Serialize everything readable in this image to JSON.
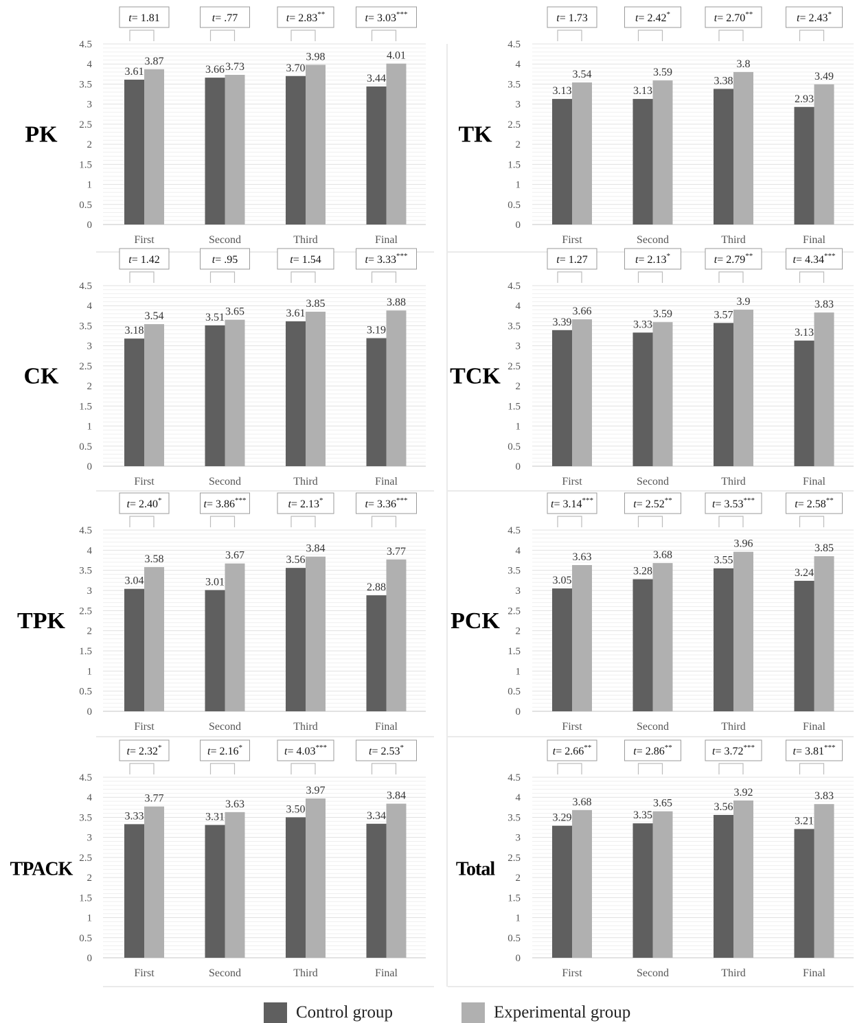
{
  "colors": {
    "control": "#5f5f5f",
    "experimental": "#b0b0b0",
    "axis_text": "#555555",
    "grid": "#e1e1e1",
    "divider": "#d5d5d5"
  },
  "legend": {
    "control": "Control group",
    "experimental": "Experimental group"
  },
  "chart_data": [
    {
      "type": "bar",
      "panel_label": "PK",
      "categories": [
        "First",
        "Second",
        "Third",
        "Final"
      ],
      "ylim": [
        0,
        4.5
      ],
      "yticks": [
        "0",
        "0.5",
        "1",
        "1.5",
        "2",
        "2.5",
        "3",
        "3.5",
        "4",
        "4.5"
      ],
      "series": [
        {
          "name": "Control group",
          "values": [
            3.61,
            3.66,
            3.7,
            3.44
          ],
          "labels": [
            "3.61",
            "3.66",
            "3.70",
            "3.44"
          ]
        },
        {
          "name": "Experimental group",
          "values": [
            3.87,
            3.73,
            3.98,
            4.01
          ],
          "labels": [
            "3.87",
            "3.73",
            "3.98",
            "4.01"
          ]
        }
      ],
      "tests": [
        {
          "t": "1.81",
          "sig": ""
        },
        {
          "t": ".77",
          "sig": ""
        },
        {
          "t": "2.83",
          "sig": "**"
        },
        {
          "t": "3.03",
          "sig": "***"
        }
      ]
    },
    {
      "type": "bar",
      "panel_label": "TK",
      "categories": [
        "First",
        "Second",
        "Third",
        "Final"
      ],
      "ylim": [
        0,
        4.5
      ],
      "yticks": [
        "0",
        "0.5",
        "1",
        "1.5",
        "2",
        "2.5",
        "3",
        "3.5",
        "4",
        "4.5"
      ],
      "series": [
        {
          "name": "Control group",
          "values": [
            3.13,
            3.13,
            3.38,
            2.93
          ],
          "labels": [
            "3.13",
            "3.13",
            "3.38",
            "2.93"
          ]
        },
        {
          "name": "Experimental group",
          "values": [
            3.54,
            3.59,
            3.8,
            3.49
          ],
          "labels": [
            "3.54",
            "3.59",
            "3.8",
            "3.49"
          ]
        }
      ],
      "tests": [
        {
          "t": "1.73",
          "sig": ""
        },
        {
          "t": "2.42",
          "sig": "*"
        },
        {
          "t": "2.70",
          "sig": "**"
        },
        {
          "t": "2.43",
          "sig": "*"
        }
      ]
    },
    {
      "type": "bar",
      "panel_label": "CK",
      "categories": [
        "First",
        "Second",
        "Third",
        "Final"
      ],
      "ylim": [
        0,
        4.5
      ],
      "yticks": [
        "0",
        "0.5",
        "1",
        "1.5",
        "2",
        "2.5",
        "3",
        "3.5",
        "4",
        "4.5"
      ],
      "series": [
        {
          "name": "Control group",
          "values": [
            3.18,
            3.51,
            3.61,
            3.19
          ],
          "labels": [
            "3.18",
            "3.51",
            "3.61",
            "3.19"
          ]
        },
        {
          "name": "Experimental group",
          "values": [
            3.54,
            3.65,
            3.85,
            3.88
          ],
          "labels": [
            "3.54",
            "3.65",
            "3.85",
            "3.88"
          ]
        }
      ],
      "tests": [
        {
          "t": "1.42",
          "sig": ""
        },
        {
          "t": ".95",
          "sig": ""
        },
        {
          "t": "1.54",
          "sig": ""
        },
        {
          "t": "3.33",
          "sig": "***"
        }
      ]
    },
    {
      "type": "bar",
      "panel_label": "TCK",
      "categories": [
        "First",
        "Second",
        "Third",
        "Final"
      ],
      "ylim": [
        0,
        4.5
      ],
      "yticks": [
        "0",
        "0.5",
        "1",
        "1.5",
        "2",
        "2.5",
        "3",
        "3.5",
        "4",
        "4.5"
      ],
      "series": [
        {
          "name": "Control group",
          "values": [
            3.39,
            3.33,
            3.57,
            3.13
          ],
          "labels": [
            "3.39",
            "3.33",
            "3.57",
            "3.13"
          ]
        },
        {
          "name": "Experimental group",
          "values": [
            3.66,
            3.59,
            3.9,
            3.83
          ],
          "labels": [
            "3.66",
            "3.59",
            "3.9",
            "3.83"
          ]
        }
      ],
      "tests": [
        {
          "t": "1.27",
          "sig": ""
        },
        {
          "t": "2.13",
          "sig": "*"
        },
        {
          "t": "2.79",
          "sig": "**"
        },
        {
          "t": "4.34",
          "sig": "***"
        }
      ]
    },
    {
      "type": "bar",
      "panel_label": "TPK",
      "categories": [
        "First",
        "Second",
        "Third",
        "Final"
      ],
      "ylim": [
        0,
        4.5
      ],
      "yticks": [
        "0",
        "0.5",
        "1",
        "1.5",
        "2",
        "2.5",
        "3",
        "3.5",
        "4",
        "4.5"
      ],
      "series": [
        {
          "name": "Control group",
          "values": [
            3.04,
            3.01,
            3.56,
            2.88
          ],
          "labels": [
            "3.04",
            "3.01",
            "3.56",
            "2.88"
          ]
        },
        {
          "name": "Experimental group",
          "values": [
            3.58,
            3.67,
            3.84,
            3.77
          ],
          "labels": [
            "3.58",
            "3.67",
            "3.84",
            "3.77"
          ]
        }
      ],
      "tests": [
        {
          "t": "2.40",
          "sig": "*"
        },
        {
          "t": "3.86",
          "sig": "***"
        },
        {
          "t": "2.13",
          "sig": "*"
        },
        {
          "t": "3.36",
          "sig": "***"
        }
      ]
    },
    {
      "type": "bar",
      "panel_label": "PCK",
      "categories": [
        "First",
        "Second",
        "Third",
        "Final"
      ],
      "ylim": [
        0,
        4.5
      ],
      "yticks": [
        "0",
        "0.5",
        "1",
        "1.5",
        "2",
        "2.5",
        "3",
        "3.5",
        "4",
        "4.5"
      ],
      "series": [
        {
          "name": "Control group",
          "values": [
            3.05,
            3.28,
            3.55,
            3.24
          ],
          "labels": [
            "3.05",
            "3.28",
            "3.55",
            "3.24"
          ]
        },
        {
          "name": "Experimental group",
          "values": [
            3.63,
            3.68,
            3.96,
            3.85
          ],
          "labels": [
            "3.63",
            "3.68",
            "3.96",
            "3.85"
          ]
        }
      ],
      "tests": [
        {
          "t": "3.14",
          "sig": "***"
        },
        {
          "t": "2.52",
          "sig": "**"
        },
        {
          "t": "3.53",
          "sig": "***"
        },
        {
          "t": "2.58",
          "sig": "**"
        }
      ]
    },
    {
      "type": "bar",
      "panel_label": "TPACK",
      "categories": [
        "First",
        "Second",
        "Third",
        "Final"
      ],
      "ylim": [
        0,
        4.5
      ],
      "yticks": [
        "0",
        "0.5",
        "1",
        "1.5",
        "2",
        "2.5",
        "3",
        "3.5",
        "4",
        "4.5"
      ],
      "series": [
        {
          "name": "Control group",
          "values": [
            3.33,
            3.31,
            3.5,
            3.34
          ],
          "labels": [
            "3.33",
            "3.31",
            "3.50",
            "3.34"
          ]
        },
        {
          "name": "Experimental group",
          "values": [
            3.77,
            3.63,
            3.97,
            3.84
          ],
          "labels": [
            "3.77",
            "3.63",
            "3.97",
            "3.84"
          ]
        }
      ],
      "tests": [
        {
          "t": "2.32",
          "sig": "*"
        },
        {
          "t": "2.16",
          "sig": "*"
        },
        {
          "t": "4.03",
          "sig": "***"
        },
        {
          "t": "2.53",
          "sig": "*"
        }
      ]
    },
    {
      "type": "bar",
      "panel_label": "Total",
      "categories": [
        "First",
        "Second",
        "Third",
        "Final"
      ],
      "ylim": [
        0,
        4.5
      ],
      "yticks": [
        "0",
        "0.5",
        "1",
        "1.5",
        "2",
        "2.5",
        "3",
        "3.5",
        "4",
        "4.5"
      ],
      "series": [
        {
          "name": "Control group",
          "values": [
            3.29,
            3.35,
            3.56,
            3.21
          ],
          "labels": [
            "3.29",
            "3.35",
            "3.56",
            "3.21"
          ]
        },
        {
          "name": "Experimental group",
          "values": [
            3.68,
            3.65,
            3.92,
            3.83
          ],
          "labels": [
            "3.68",
            "3.65",
            "3.92",
            "3.83"
          ]
        }
      ],
      "tests": [
        {
          "t": "2.66",
          "sig": "**"
        },
        {
          "t": "2.86",
          "sig": "**"
        },
        {
          "t": "3.72",
          "sig": "***"
        },
        {
          "t": "3.81",
          "sig": "***"
        }
      ]
    }
  ]
}
